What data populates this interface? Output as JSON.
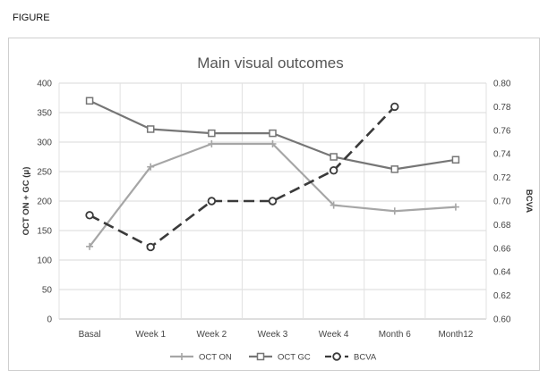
{
  "figure_label": "FIGURE",
  "chart_data": {
    "type": "line",
    "title": "Main visual outcomes",
    "categories": [
      "Basal",
      "Week 1",
      "Week 2",
      "Week 3",
      "Week 4",
      "Month 6",
      "Month12"
    ],
    "ylabel": "OCT ON + GC (μ)",
    "y2label": "BCVA",
    "ylim": [
      0,
      400
    ],
    "y2lim": [
      0.6,
      0.8
    ],
    "yticks": [
      "0",
      "50",
      "100",
      "150",
      "200",
      "250",
      "300",
      "350",
      "400"
    ],
    "y2ticks": [
      "0.60",
      "0.62",
      "0.64",
      "0.66",
      "0.68",
      "0.70",
      "0.72",
      "0.74",
      "0.76",
      "0.78",
      "0.80"
    ],
    "grid": true,
    "legend_position": "bottom",
    "series": [
      {
        "name": "OCT ON",
        "axis": "left",
        "color": "#a6a6a6",
        "marker": "plus",
        "dash": "solid",
        "values": [
          123,
          258,
          297,
          297,
          193,
          183,
          190
        ]
      },
      {
        "name": "OCT GC",
        "axis": "left",
        "color": "#767676",
        "marker": "square",
        "dash": "solid",
        "values": [
          370,
          322,
          315,
          315,
          275,
          254,
          270
        ]
      },
      {
        "name": "BCVA",
        "axis": "right",
        "color": "#3a3a3a",
        "marker": "circle",
        "dash": "dashed",
        "values": [
          0.688,
          0.661,
          0.7,
          0.7,
          0.726,
          0.78,
          null
        ]
      }
    ]
  }
}
